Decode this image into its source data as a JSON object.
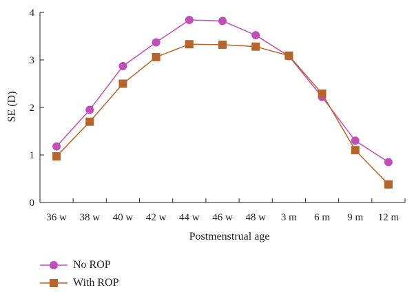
{
  "chart_data": {
    "type": "line",
    "title": "",
    "xlabel": "Postmenstrual age",
    "ylabel": "SE (D)",
    "categories": [
      "36 w",
      "38 w",
      "40 w",
      "42 w",
      "44 w",
      "46 w",
      "48 w",
      "3 m",
      "6 m",
      "9 m",
      "12 m"
    ],
    "ylim": [
      0,
      4
    ],
    "yticks": [
      "0",
      "1",
      "2",
      "3",
      "4"
    ],
    "grid": false,
    "legend_position": "bottom-left",
    "series": [
      {
        "name": "No ROP",
        "marker": "circle",
        "color": "#c04fb7",
        "values": [
          1.18,
          1.95,
          2.87,
          3.37,
          3.84,
          3.82,
          3.52,
          3.08,
          2.22,
          1.3,
          0.85
        ]
      },
      {
        "name": "With ROP",
        "marker": "square",
        "color": "#b5652b",
        "values": [
          0.97,
          1.7,
          2.5,
          3.06,
          3.33,
          3.32,
          3.28,
          3.09,
          2.29,
          1.1,
          0.38
        ]
      }
    ]
  }
}
